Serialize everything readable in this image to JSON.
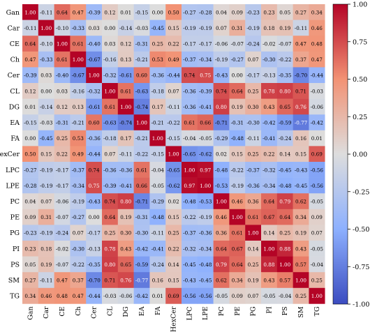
{
  "chart_data": {
    "type": "heatmap",
    "title": "",
    "xlabel": "",
    "ylabel": "",
    "labels": [
      "Gan",
      "Car",
      "CE",
      "Ch",
      "Cer",
      "CL",
      "DG",
      "EA",
      "FA",
      "HexCer",
      "LPC",
      "LPE",
      "PC",
      "PE",
      "PG",
      "PI",
      "PS",
      "SM",
      "TG"
    ],
    "matrix": [
      [
        "1.00",
        "-0.11",
        "0.64",
        "0.47",
        "-0.39",
        "0.12",
        "0.01",
        "-0.15",
        "0.00",
        "0.50",
        "-0.27",
        "-0.28",
        "0.04",
        "0.09",
        "-0.23",
        "0.23",
        "0.05",
        "0.27",
        "0.34"
      ],
      [
        "-0.11",
        "1.00",
        "-0.10",
        "-0.33",
        "0.03",
        "0.00",
        "-0.14",
        "-0.03",
        "-0.45",
        "0.15",
        "-0.19",
        "-0.19",
        "0.07",
        "0.31",
        "-0.19",
        "0.18",
        "0.19",
        "-0.11",
        "0.46"
      ],
      [
        "0.64",
        "-0.10",
        "1.00",
        "0.61",
        "-0.40",
        "0.03",
        "0.12",
        "-0.31",
        "0.25",
        "0.22",
        "-0.17",
        "-0.17",
        "-0.06",
        "-0.07",
        "-0.24",
        "-0.02",
        "-0.07",
        "0.47",
        "0.48"
      ],
      [
        "0.47",
        "-0.33",
        "0.61",
        "1.00",
        "-0.67",
        "-0.16",
        "0.13",
        "-0.21",
        "0.53",
        "0.49",
        "-0.37",
        "-0.34",
        "-0.19",
        "-0.27",
        "0.07",
        "-0.30",
        "-0.22",
        "0.37",
        "0.47"
      ],
      [
        "-0.39",
        "0.03",
        "-0.40",
        "-0.67",
        "1.00",
        "-0.32",
        "-0.61",
        "0.60",
        "-0.36",
        "-0.44",
        "0.74",
        "0.75",
        "-0.43",
        "0.00",
        "-0.17",
        "-0.13",
        "-0.35",
        "-0.70",
        "-0.44"
      ],
      [
        "0.12",
        "0.00",
        "0.03",
        "-0.16",
        "-0.32",
        "1.00",
        "0.61",
        "-0.63",
        "-0.18",
        "0.07",
        "-0.36",
        "-0.39",
        "0.74",
        "0.64",
        "0.25",
        "0.78",
        "0.80",
        "0.71",
        "-0.03"
      ],
      [
        "0.01",
        "-0.14",
        "0.12",
        "0.13",
        "-0.61",
        "0.61",
        "1.00",
        "-0.74",
        "0.17",
        "-0.11",
        "-0.36",
        "-0.41",
        "0.80",
        "0.19",
        "0.30",
        "0.43",
        "0.65",
        "0.76",
        "-0.06"
      ],
      [
        "-0.15",
        "-0.03",
        "-0.31",
        "-0.21",
        "0.60",
        "-0.63",
        "-0.74",
        "1.00",
        "-0.21",
        "-0.22",
        "0.61",
        "0.66",
        "-0.71",
        "-0.31",
        "-0.30",
        "-0.42",
        "-0.59",
        "-0.77",
        "-0.42"
      ],
      [
        "0.00",
        "-0.45",
        "0.25",
        "0.53",
        "-0.36",
        "-0.18",
        "0.17",
        "-0.21",
        "1.00",
        "-0.15",
        "-0.04",
        "-0.05",
        "-0.29",
        "-0.48",
        "-0.11",
        "-0.41",
        "-0.24",
        "0.16",
        "0.01"
      ],
      [
        "0.50",
        "0.15",
        "0.22",
        "0.49",
        "-0.44",
        "0.07",
        "-0.11",
        "-0.22",
        "-0.15",
        "1.00",
        "-0.65",
        "-0.62",
        "0.02",
        "0.15",
        "0.25",
        "0.22",
        "0.14",
        "0.15",
        "0.69"
      ],
      [
        "-0.27",
        "-0.19",
        "-0.17",
        "-0.37",
        "0.74",
        "-0.36",
        "-0.36",
        "0.61",
        "-0.04",
        "-0.65",
        "1.00",
        "0.97",
        "-0.48",
        "-0.22",
        "-0.37",
        "-0.32",
        "-0.45",
        "-0.43",
        "-0.56"
      ],
      [
        "-0.28",
        "-0.19",
        "-0.17",
        "-0.34",
        "0.75",
        "-0.39",
        "-0.41",
        "0.66",
        "-0.05",
        "-0.62",
        "0.97",
        "1.00",
        "-0.53",
        "-0.19",
        "-0.36",
        "-0.34",
        "-0.48",
        "-0.45",
        "-0.56"
      ],
      [
        "0.04",
        "0.07",
        "-0.06",
        "-0.19",
        "-0.43",
        "0.74",
        "0.80",
        "-0.71",
        "-0.29",
        "0.02",
        "-0.48",
        "-0.53",
        "1.00",
        "0.46",
        "0.36",
        "0.64",
        "0.79",
        "0.62",
        "-0.05"
      ],
      [
        "0.09",
        "0.31",
        "-0.07",
        "-0.27",
        "0.00",
        "0.64",
        "0.19",
        "-0.31",
        "-0.48",
        "0.15",
        "-0.22",
        "-0.19",
        "0.46",
        "1.00",
        "0.61",
        "0.67",
        "0.64",
        "0.34",
        "0.09"
      ],
      [
        "-0.23",
        "-0.19",
        "-0.24",
        "0.07",
        "-0.17",
        "0.25",
        "0.30",
        "-0.30",
        "-0.11",
        "0.25",
        "-0.37",
        "-0.36",
        "0.36",
        "0.61",
        "1.00",
        "0.14",
        "0.25",
        "0.19",
        "0.07"
      ],
      [
        "0.23",
        "0.18",
        "-0.02",
        "-0.30",
        "-0.13",
        "0.78",
        "0.43",
        "-0.42",
        "-0.41",
        "0.22",
        "-0.32",
        "-0.34",
        "0.64",
        "0.67",
        "0.14",
        "1.00",
        "0.88",
        "0.43",
        "-0.05"
      ],
      [
        "0.05",
        "0.19",
        "-0.07",
        "-0.22",
        "-0.35",
        "0.80",
        "0.65",
        "-0.59",
        "-0.24",
        "0.14",
        "-0.45",
        "-0.48",
        "0.79",
        "0.64",
        "0.25",
        "0.88",
        "1.00",
        "0.57",
        "-0.04"
      ],
      [
        "0.27",
        "-0.11",
        "0.47",
        "0.37",
        "-0.70",
        "0.71",
        "0.76",
        "-0.77",
        "0.16",
        "0.15",
        "-0.43",
        "-0.45",
        "0.62",
        "0.34",
        "0.19",
        "0.43",
        "0.57",
        "1.00",
        "0.25"
      ],
      [
        "0.34",
        "0.46",
        "0.48",
        "0.47",
        "-0.44",
        "-0.03",
        "-0.06",
        "-0.42",
        "0.01",
        "0.69",
        "-0.56",
        "-0.56",
        "-0.05",
        "0.09",
        "0.07",
        "-0.05",
        "-0.04",
        "0.25",
        "1.00"
      ]
    ],
    "colorbar": {
      "range": [
        -1.0,
        1.0
      ],
      "ticks": [
        "1.00",
        "0.75",
        "0.50",
        "0.25",
        "0.00",
        "-0.25",
        "-0.50",
        "-0.75",
        "-1.00"
      ],
      "colormap": [
        "#3b4cc0",
        "#dddddd",
        "#b40426"
      ]
    }
  }
}
